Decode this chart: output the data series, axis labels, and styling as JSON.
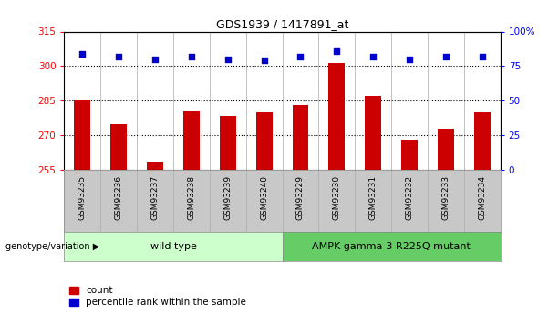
{
  "title": "GDS1939 / 1417891_at",
  "categories": [
    "GSM93235",
    "GSM93236",
    "GSM93237",
    "GSM93238",
    "GSM93239",
    "GSM93240",
    "GSM93229",
    "GSM93230",
    "GSM93231",
    "GSM93232",
    "GSM93233",
    "GSM93234"
  ],
  "bar_values": [
    285.5,
    275.0,
    258.5,
    280.5,
    278.5,
    280.0,
    283.0,
    301.5,
    287.0,
    268.0,
    273.0,
    280.0
  ],
  "percentile_values": [
    84,
    82,
    80,
    82,
    80,
    79,
    82,
    86,
    82,
    80,
    82,
    82
  ],
  "bar_color": "#cc0000",
  "dot_color": "#0000cc",
  "ylim_left": [
    255,
    315
  ],
  "ylim_right": [
    0,
    100
  ],
  "yticks_left": [
    255,
    270,
    285,
    300,
    315
  ],
  "yticks_right": [
    0,
    25,
    50,
    75,
    100
  ],
  "ytick_labels_right": [
    "0",
    "25",
    "50",
    "75",
    "100%"
  ],
  "grid_values": [
    270,
    285,
    300
  ],
  "wild_type_label": "wild type",
  "mutant_label": "AMPK gamma-3 R225Q mutant",
  "genotype_label": "genotype/variation",
  "legend_count": "count",
  "legend_percentile": "percentile rank within the sample",
  "wild_type_color": "#ccffcc",
  "mutant_color": "#66cc66",
  "axis_bg_color": "#ffffff",
  "tick_bg_color": "#c8c8c8"
}
